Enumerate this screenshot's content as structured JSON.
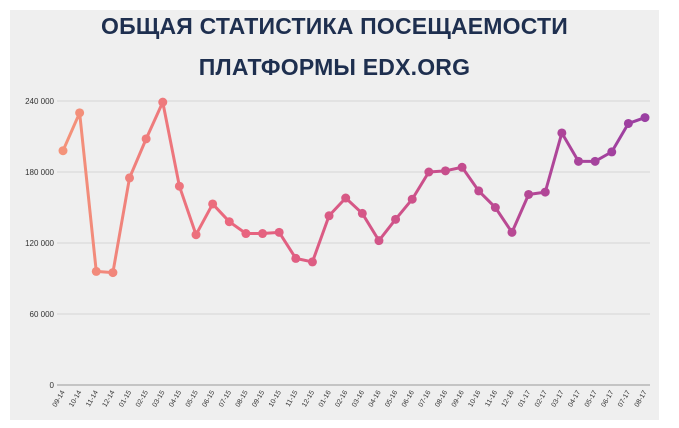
{
  "chart_data": {
    "type": "line",
    "title": "ОБЩАЯ СТАТИСТИКА ПОСЕЩАЕМОСТИ",
    "subtitle": "ПЛАТФОРМЫ EDX.ORG",
    "xlabel": "",
    "ylabel": "",
    "ylim": [
      0,
      240000
    ],
    "yticks": [
      0,
      60000,
      120000,
      180000,
      240000
    ],
    "ytick_labels": [
      "0",
      "60 000",
      "120 000",
      "180 000",
      "240 000"
    ],
    "grid": true,
    "legend": "none",
    "gradient_colors": [
      "#f4937a",
      "#e9657e",
      "#c84e8c",
      "#9a3fa2"
    ],
    "categories": [
      "09-14",
      "10-14",
      "11-14",
      "12-14",
      "01-15",
      "02-15",
      "03-15",
      "04-15",
      "05-15",
      "06-15",
      "07-15",
      "08-15",
      "09-15",
      "10-15",
      "11-15",
      "12-15",
      "01-16",
      "02-16",
      "03-16",
      "04-16",
      "05-16",
      "06-16",
      "07-16",
      "08-16",
      "09-16",
      "10-16",
      "11-16",
      "12-16",
      "01-17",
      "02-17",
      "03-17",
      "04-17",
      "05-17",
      "06-17",
      "07-17",
      "08-17"
    ],
    "values": [
      198000,
      230000,
      96000,
      95000,
      175000,
      208000,
      239000,
      168000,
      127000,
      153000,
      138000,
      128000,
      128000,
      129000,
      107000,
      104000,
      143000,
      158000,
      145000,
      122000,
      140000,
      157000,
      180000,
      181000,
      184000,
      164000,
      150000,
      129000,
      161000,
      163000,
      213000,
      189000,
      189000,
      197000,
      221000,
      226000
    ]
  }
}
